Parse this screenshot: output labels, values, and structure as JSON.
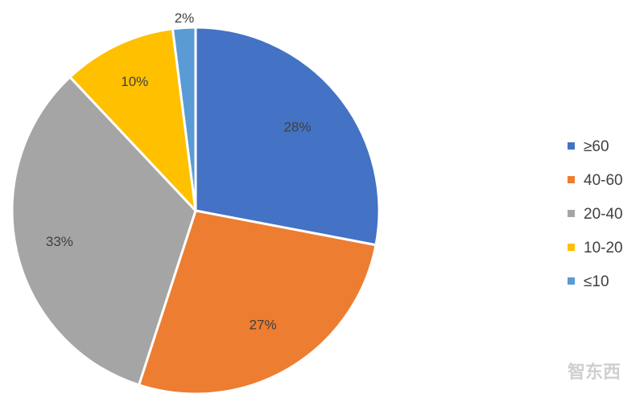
{
  "chart_data": {
    "type": "pie",
    "categories": [
      "≥60",
      "40-60",
      "20-40",
      "10-20",
      "≤10"
    ],
    "values": [
      28,
      27,
      33,
      10,
      2
    ],
    "labels": [
      "28%",
      "27%",
      "33%",
      "10%",
      "2%"
    ],
    "colors": [
      "#4472C4",
      "#ED7D31",
      "#A5A5A5",
      "#FFC000",
      "#5B9BD5"
    ],
    "legend_position": "right"
  },
  "watermark": {
    "text": "智东西"
  }
}
